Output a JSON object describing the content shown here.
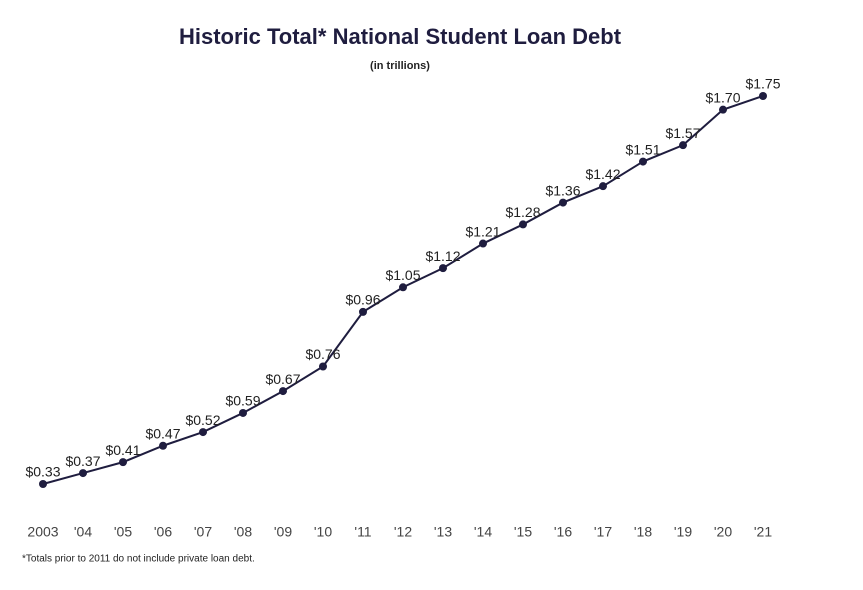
{
  "chart_data": {
    "type": "line",
    "title": "Historic Total* National Student Loan Debt",
    "subtitle": "(in trillions)",
    "footnote": "*Totals  prior to 2011 do not include private loan debt.",
    "categories": [
      "2003",
      "'04",
      "'05",
      "'06",
      "'07",
      "'08",
      "'09",
      "'10",
      "'11",
      "'12",
      "'13",
      "'14",
      "'15",
      "'16",
      "'17",
      "'18",
      "'19",
      "'20",
      "'21"
    ],
    "color": "#1f1d3f",
    "values": [
      0.33,
      0.37,
      0.41,
      0.47,
      0.52,
      0.59,
      0.67,
      0.76,
      0.96,
      1.05,
      1.12,
      1.21,
      1.28,
      1.36,
      1.42,
      1.51,
      1.57,
      1.7,
      1.75
    ],
    "value_labels": [
      "$0.33",
      "$0.37",
      "$0.41",
      "$0.47",
      "$0.52",
      "$0.59",
      "$0.67",
      "$0.76",
      "$0.96",
      "$1.05",
      "$1.12",
      "$1.21",
      "$1.28",
      "$1.36",
      "$1.42",
      "$1.51",
      "$1.57",
      "$1.70",
      "$1.75"
    ]
  }
}
